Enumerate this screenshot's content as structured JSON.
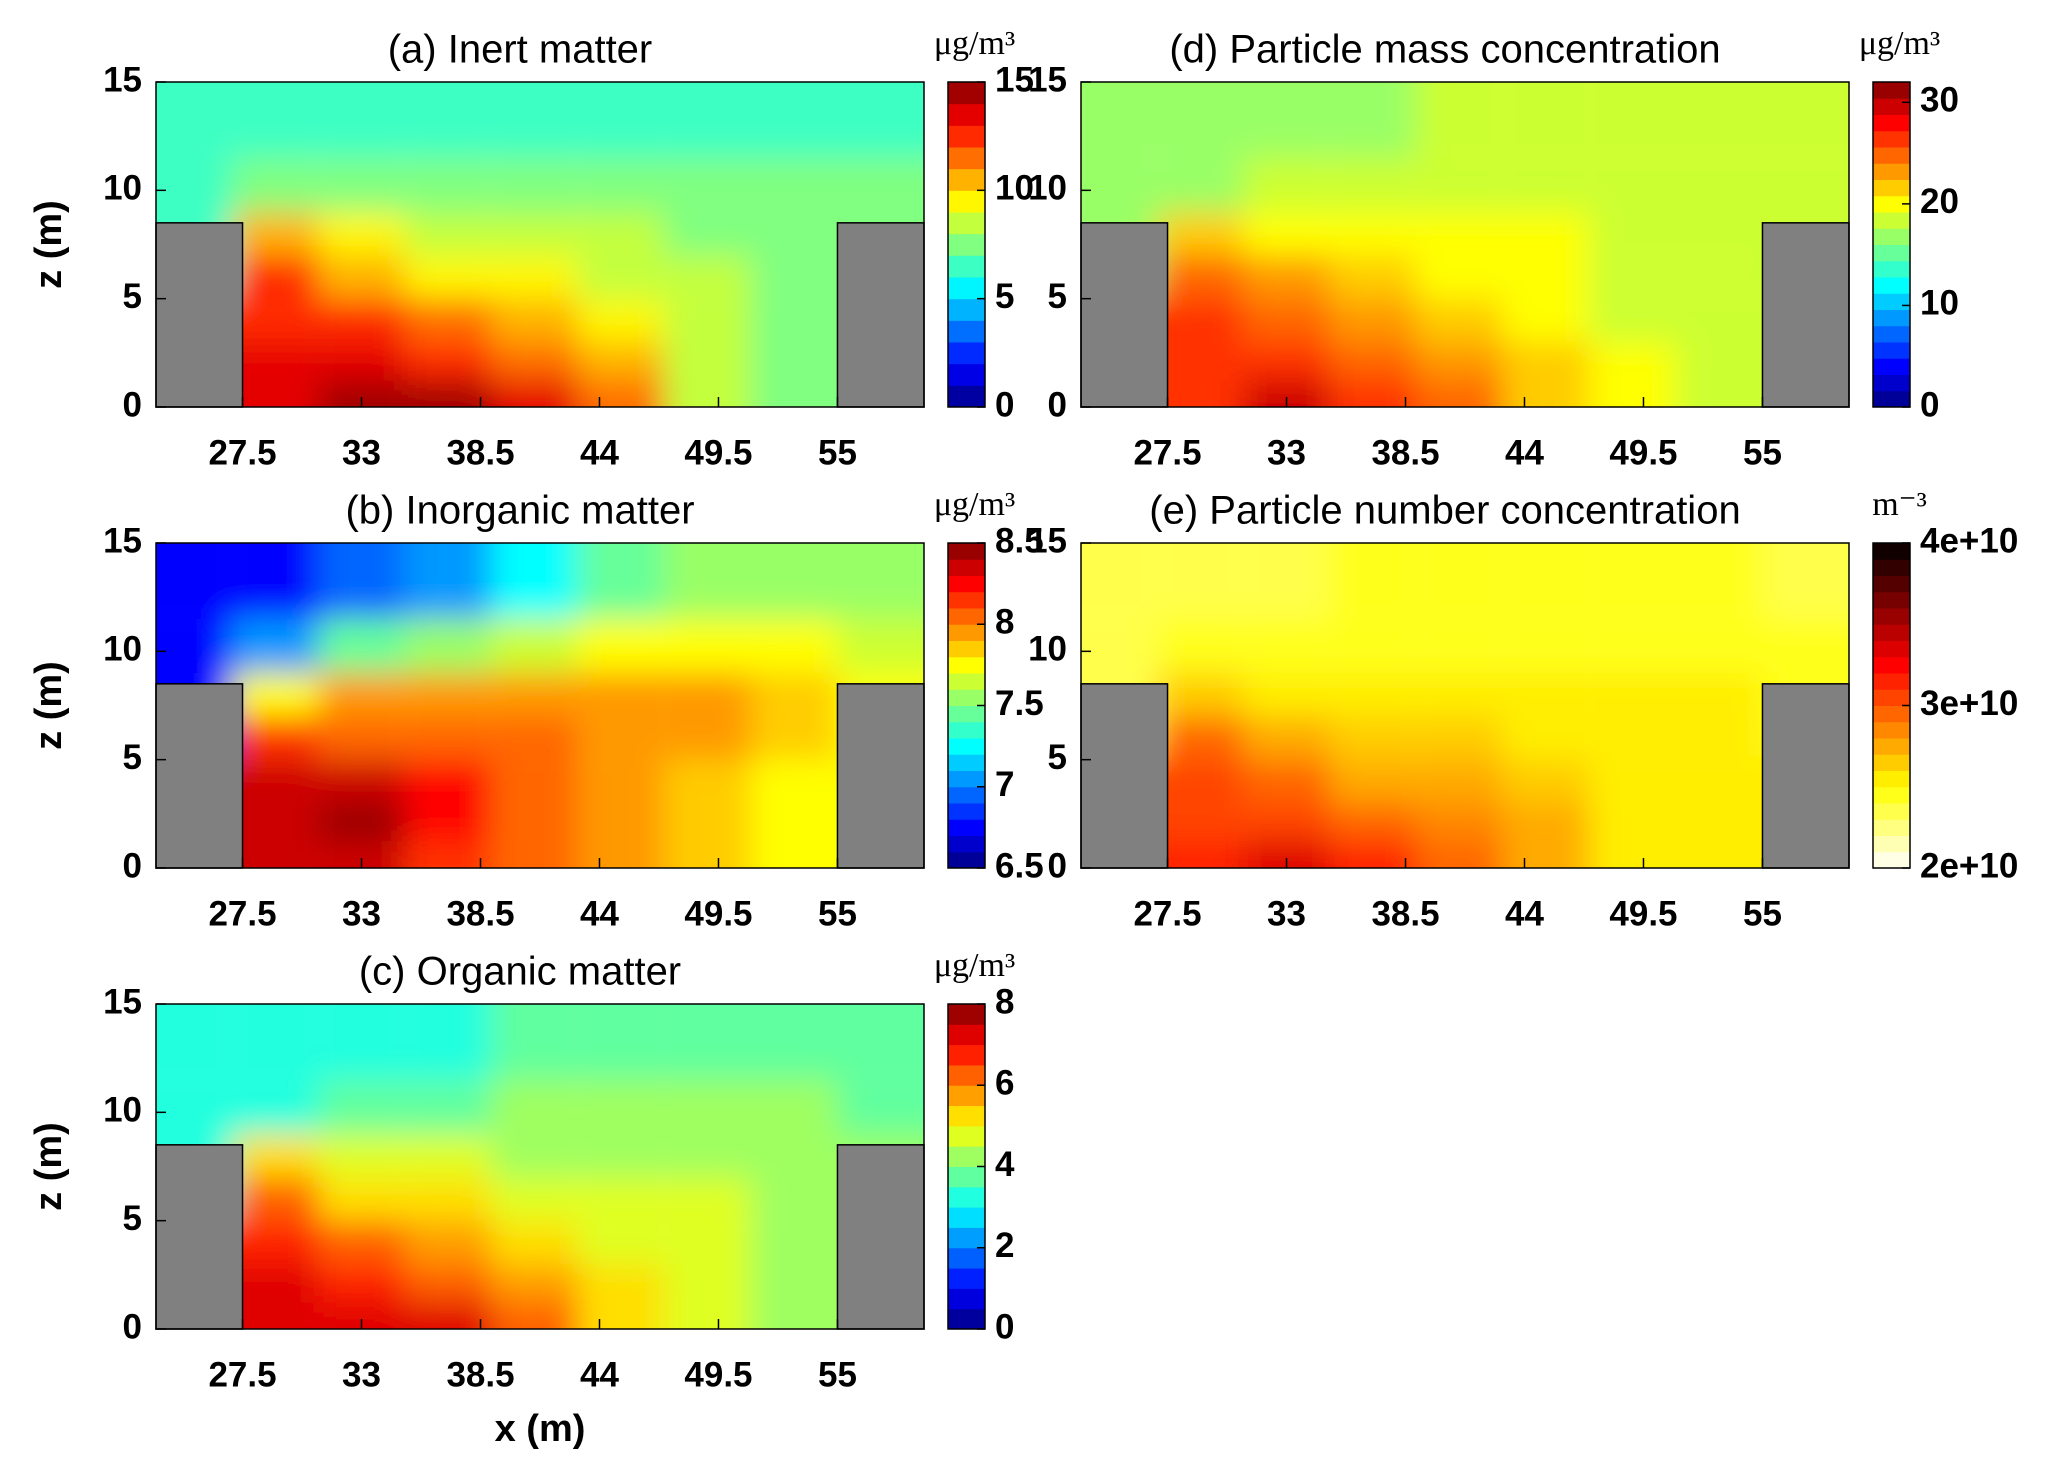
{
  "chart_data": [
    {
      "type": "contour",
      "title": "(a) Inert matter",
      "unit_label": "μg/m³",
      "ylabel": "z (m)",
      "xlim": [
        23.5,
        59
      ],
      "ylim": [
        0,
        15
      ],
      "xticks": [
        27.5,
        33,
        38.5,
        44,
        49.5,
        55
      ],
      "yticks": [
        0,
        5,
        10,
        15
      ],
      "colormap": "jet",
      "clim": [
        0,
        15
      ],
      "levels": 15,
      "cticks": [
        0,
        5,
        10,
        15
      ],
      "building_color": "#808080",
      "buildings": [
        {
          "x": [
            23.5,
            27.5
          ],
          "top": 8.5
        },
        {
          "x": [
            55,
            59
          ],
          "top": 8.5
        }
      ],
      "x": [
        25,
        29,
        33,
        37,
        41,
        45,
        49,
        53,
        57
      ],
      "y": [
        0.5,
        2,
        4,
        6,
        8,
        10,
        13
      ],
      "z": [
        [
          null,
          13.5,
          14.5,
          14,
          13,
          11,
          8,
          7.5,
          null
        ],
        [
          null,
          13,
          13,
          12.5,
          11.5,
          10,
          8,
          7.5,
          null
        ],
        [
          null,
          12.5,
          12,
          11,
          10,
          9,
          8,
          7.5,
          null
        ],
        [
          null,
          12,
          10.5,
          9.5,
          9,
          8.5,
          8,
          7.5,
          null
        ],
        [
          6.5,
          10,
          9,
          8.5,
          8,
          8,
          7.5,
          7.5,
          7.5
        ],
        [
          6.5,
          7,
          7.5,
          7.5,
          7.5,
          7.5,
          7.5,
          7.5,
          7
        ],
        [
          6.5,
          6.5,
          6.5,
          6.5,
          6.5,
          6.5,
          6.5,
          6.5,
          6.5
        ]
      ]
    },
    {
      "type": "contour",
      "title": "(b) Inorganic matter",
      "unit_label": "μg/m³",
      "ylabel": "z (m)",
      "xlim": [
        23.5,
        59
      ],
      "ylim": [
        0,
        15
      ],
      "xticks": [
        27.5,
        33,
        38.5,
        44,
        49.5,
        55
      ],
      "yticks": [
        0,
        5,
        10,
        15
      ],
      "colormap": "jet",
      "clim": [
        6.5,
        8.5
      ],
      "levels": 20,
      "cticks": [
        6.5,
        7,
        7.5,
        8,
        8.5
      ],
      "building_color": "#808080",
      "buildings": [
        {
          "x": [
            23.5,
            27.5
          ],
          "top": 8.5
        },
        {
          "x": [
            55,
            59
          ],
          "top": 8.5
        }
      ],
      "x": [
        25,
        29,
        33,
        37,
        41,
        45,
        49,
        53,
        57
      ],
      "y": [
        0.5,
        2,
        4,
        6,
        8,
        10,
        13
      ],
      "z": [
        [
          null,
          8.3,
          8.35,
          8.2,
          8.0,
          7.9,
          7.85,
          7.7,
          null
        ],
        [
          null,
          8.3,
          8.45,
          8.25,
          8.05,
          7.9,
          7.85,
          7.75,
          null
        ],
        [
          null,
          8.3,
          8.3,
          8.25,
          8.1,
          7.95,
          7.85,
          7.8,
          null
        ],
        [
          null,
          8.2,
          8.1,
          8.1,
          8.05,
          7.95,
          7.9,
          7.85,
          null
        ],
        [
          6.7,
          7.8,
          7.9,
          7.9,
          7.9,
          7.9,
          7.9,
          7.85,
          7.7
        ],
        [
          6.7,
          7.0,
          7.4,
          7.55,
          7.65,
          7.7,
          7.7,
          7.7,
          7.65
        ],
        [
          6.7,
          6.75,
          6.95,
          7.1,
          7.25,
          7.45,
          7.55,
          7.6,
          7.55
        ]
      ]
    },
    {
      "type": "contour",
      "title": "(c) Organic matter",
      "unit_label": "μg/m³",
      "ylabel": "z (m)",
      "xlabel": "x (m)",
      "xlim": [
        23.5,
        59
      ],
      "ylim": [
        0,
        15
      ],
      "xticks": [
        27.5,
        33,
        38.5,
        44,
        49.5,
        55
      ],
      "yticks": [
        0,
        5,
        10,
        15
      ],
      "colormap": "jet",
      "clim": [
        0,
        8
      ],
      "levels": 16,
      "cticks": [
        0,
        2,
        4,
        6,
        8
      ],
      "building_color": "#808080",
      "buildings": [
        {
          "x": [
            23.5,
            27.5
          ],
          "top": 8.5
        },
        {
          "x": [
            55,
            59
          ],
          "top": 8.5
        }
      ],
      "x": [
        25,
        29,
        33,
        37,
        41,
        45,
        49,
        53,
        57
      ],
      "y": [
        0.5,
        2,
        4,
        6,
        8,
        10,
        13
      ],
      "z": [
        [
          null,
          7.0,
          7.3,
          7.0,
          6.2,
          5.2,
          4.6,
          4.4,
          null
        ],
        [
          null,
          7.0,
          6.8,
          6.3,
          5.7,
          5.0,
          4.6,
          4.4,
          null
        ],
        [
          null,
          6.8,
          6.2,
          5.6,
          5.2,
          4.8,
          4.5,
          4.4,
          null
        ],
        [
          null,
          6.3,
          5.4,
          5.0,
          4.8,
          4.6,
          4.5,
          4.4,
          null
        ],
        [
          3.2,
          5.0,
          4.6,
          4.5,
          4.4,
          4.4,
          4.4,
          4.3,
          4.2
        ],
        [
          3.2,
          3.4,
          3.7,
          3.9,
          4.0,
          4.1,
          4.2,
          4.2,
          3.9
        ],
        [
          3.2,
          3.2,
          3.3,
          3.4,
          3.6,
          3.7,
          3.8,
          3.8,
          3.6
        ]
      ]
    },
    {
      "type": "contour",
      "title": "(d) Particle mass concentration",
      "unit_label": "μg/m³",
      "xlim": [
        23.5,
        59
      ],
      "ylim": [
        0,
        15
      ],
      "xticks": [
        27.5,
        33,
        38.5,
        44,
        49.5,
        55
      ],
      "yticks": [
        0,
        5,
        10,
        15
      ],
      "colormap": "jet",
      "clim": [
        0,
        32
      ],
      "levels": 20,
      "cticks": [
        0,
        10,
        20,
        30
      ],
      "building_color": "#808080",
      "buildings": [
        {
          "x": [
            23.5,
            27.5
          ],
          "top": 8.5
        },
        {
          "x": [
            55,
            59
          ],
          "top": 8.5
        }
      ],
      "x": [
        25,
        29,
        33,
        37,
        41,
        45,
        49,
        53,
        57
      ],
      "y": [
        0.5,
        2,
        4,
        6,
        8,
        10,
        13
      ],
      "z": [
        [
          null,
          27,
          29,
          27,
          24,
          21.5,
          19.5,
          18.5,
          null
        ],
        [
          null,
          26.5,
          26,
          24.5,
          23,
          21,
          19.5,
          18.5,
          null
        ],
        [
          null,
          26,
          24.5,
          23,
          21.5,
          20.5,
          19,
          18.5,
          null
        ],
        [
          null,
          25,
          22.5,
          21.5,
          20.5,
          20,
          19,
          18.5,
          null
        ],
        [
          16,
          21.5,
          20.5,
          20,
          19.5,
          19.5,
          19,
          19,
          18.5
        ],
        [
          16,
          17,
          18,
          18.5,
          18.5,
          18.5,
          18.5,
          18.5,
          18
        ],
        [
          16,
          16,
          16.5,
          17.5,
          18,
          18,
          18,
          18,
          18
        ]
      ]
    },
    {
      "type": "contour",
      "title": "(e) Particle number concentration",
      "unit_label": "m⁻³",
      "xlim": [
        23.5,
        59
      ],
      "ylim": [
        0,
        15
      ],
      "xticks": [
        27.5,
        33,
        38.5,
        44,
        49.5,
        55
      ],
      "yticks": [
        0,
        5,
        10,
        15
      ],
      "colormap": "hot_r",
      "clim": [
        20000000000.0,
        40000000000.0
      ],
      "levels": 20,
      "cticks": [
        {
          "value": 20000000000.0,
          "label": "2e+10"
        },
        {
          "value": 30000000000.0,
          "label": "3e+10"
        },
        {
          "value": 40000000000.0,
          "label": "4e+10"
        }
      ],
      "building_color": "#808080",
      "buildings": [
        {
          "x": [
            23.5,
            27.5
          ],
          "top": 8.5
        },
        {
          "x": [
            55,
            59
          ],
          "top": 8.5
        }
      ],
      "x": [
        25,
        29,
        33,
        37,
        41,
        45,
        49,
        53,
        57
      ],
      "y": [
        0.5,
        2,
        4,
        6,
        8,
        10,
        13
      ],
      "z": [
        [
          null,
          31000000000.0,
          33000000000.0,
          31500000000.0,
          29500000000.0,
          27500000000.0,
          25500000000.0,
          25000000000.0,
          null
        ],
        [
          null,
          30500000000.0,
          30000000000.0,
          29000000000.0,
          28000000000.0,
          27000000000.0,
          25500000000.0,
          25000000000.0,
          null
        ],
        [
          null,
          30000000000.0,
          29000000000.0,
          27500000000.0,
          27000000000.0,
          26000000000.0,
          25500000000.0,
          25000000000.0,
          null
        ],
        [
          null,
          29000000000.0,
          27000000000.0,
          26500000000.0,
          26000000000.0,
          25500000000.0,
          25000000000.0,
          25000000000.0,
          null
        ],
        [
          23500000000.0,
          26000000000.0,
          25500000000.0,
          25500000000.0,
          25000000000.0,
          25000000000.0,
          25000000000.0,
          25000000000.0,
          24500000000.0
        ],
        [
          23500000000.0,
          24000000000.0,
          24500000000.0,
          24500000000.0,
          24500000000.0,
          24500000000.0,
          24500000000.0,
          24500000000.0,
          24000000000.0
        ],
        [
          23500000000.0,
          23500000000.0,
          23500000000.0,
          24000000000.0,
          24000000000.0,
          24000000000.0,
          24000000000.0,
          24000000000.0,
          23500000000.0
        ]
      ]
    }
  ]
}
